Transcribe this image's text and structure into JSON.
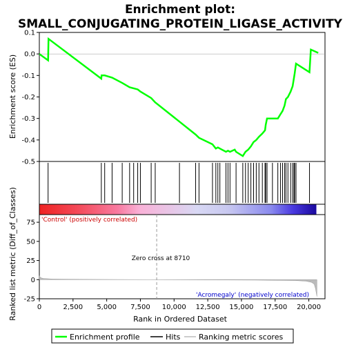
{
  "chart_data": {
    "type": "line",
    "title": "Enrichment plot:",
    "subtitle": "SMALL_CONJUGATING_PROTEIN_LIGASE_ACTIVITY",
    "enrichment_panel": {
      "ylabel": "Enrichment score (ES)",
      "ylim": [
        -0.5,
        0.1
      ],
      "yticks": [
        "0.1",
        "0.0",
        "-0.1",
        "-0.2",
        "-0.3",
        "-0.4",
        "-0.5"
      ],
      "ytick_values": [
        0.1,
        0.0,
        -0.1,
        -0.2,
        -0.3,
        -0.4,
        -0.5
      ],
      "line_color": "#00ff00",
      "series": [
        {
          "name": "Enrichment profile",
          "x": [
            0,
            650,
            680,
            4600,
            4620,
            4850,
            5400,
            6150,
            6700,
            7300,
            7500,
            8300,
            8600,
            10400,
            11600,
            11850,
            12850,
            13100,
            13250,
            13400,
            13850,
            14000,
            14150,
            14500,
            14600,
            15100,
            15300,
            15500,
            15700,
            15900,
            16100,
            16300,
            16550,
            16750,
            16800,
            16900,
            17300,
            17700,
            17900,
            18050,
            18200,
            18300,
            18450,
            18650,
            18800,
            18900,
            18950,
            19050,
            20050,
            20150,
            20700
          ],
          "y": [
            0.0,
            -0.03,
            0.07,
            -0.115,
            -0.1,
            -0.1,
            -0.11,
            -0.135,
            -0.155,
            -0.165,
            -0.175,
            -0.205,
            -0.225,
            -0.315,
            -0.375,
            -0.39,
            -0.42,
            -0.44,
            -0.435,
            -0.44,
            -0.455,
            -0.45,
            -0.455,
            -0.445,
            -0.455,
            -0.475,
            -0.455,
            -0.445,
            -0.43,
            -0.41,
            -0.4,
            -0.385,
            -0.37,
            -0.355,
            -0.33,
            -0.3,
            -0.3,
            -0.3,
            -0.28,
            -0.265,
            -0.24,
            -0.21,
            -0.2,
            -0.175,
            -0.15,
            -0.11,
            -0.09,
            -0.045,
            -0.085,
            0.02,
            0.005
          ]
        }
      ]
    },
    "hits_panel": {
      "hit_positions": [
        650,
        4600,
        4850,
        5400,
        6150,
        6700,
        7000,
        7300,
        7500,
        8300,
        8600,
        10400,
        11600,
        11850,
        12850,
        13100,
        13250,
        13400,
        13850,
        14000,
        14150,
        14600,
        15100,
        15300,
        15500,
        15700,
        15900,
        16100,
        16300,
        16550,
        16750,
        16800,
        16900,
        17300,
        17700,
        17900,
        18050,
        18200,
        18300,
        18450,
        18650,
        18800,
        18900,
        18950,
        19050,
        20050
      ],
      "colorbar_stops": [
        {
          "x": 0,
          "color": "#ee2222"
        },
        {
          "x": 3000,
          "color": "#f44c5c"
        },
        {
          "x": 5800,
          "color": "#f87aa0"
        },
        {
          "x": 7500,
          "color": "#f9b2d8"
        },
        {
          "x": 11700,
          "color": "#d8d8f4"
        },
        {
          "x": 14000,
          "color": "#c8c8f0"
        },
        {
          "x": 17200,
          "color": "#8a8aee"
        },
        {
          "x": 18800,
          "color": "#4a3ae0"
        },
        {
          "x": 20500,
          "color": "#1c0aa0"
        }
      ]
    },
    "metric_panel": {
      "ylabel": "Ranked list metric (Diff_of_Classes)",
      "xlabel": "Rank in Ordered Dataset",
      "ylim": [
        -25,
        85
      ],
      "yticks": [
        "75",
        "50",
        "25",
        "0",
        "-25"
      ],
      "ytick_values": [
        75,
        50,
        25,
        0,
        -25
      ],
      "xlim": [
        0,
        21200
      ],
      "xticks": [
        "0",
        "2,500",
        "5,000",
        "7,500",
        "10,000",
        "12,500",
        "15,000",
        "17,500",
        "20,000"
      ],
      "xtick_values": [
        0,
        2500,
        5000,
        7500,
        10000,
        12500,
        15000,
        17500,
        20000
      ],
      "fill_color": "#bbbbbb",
      "metric_x": [
        0,
        100,
        300,
        1000,
        3000,
        6000,
        8710,
        12000,
        16000,
        19000,
        19800,
        20200,
        20400,
        20500,
        20600
      ],
      "metric_y": [
        5,
        2.5,
        1.5,
        0.8,
        0.4,
        0.2,
        0,
        -0.3,
        -0.6,
        -1.2,
        -2.0,
        -3.5,
        -6.0,
        -12.0,
        -22.0
      ],
      "zero_cross": 8710,
      "zero_cross_label": "Zero cross at 8710",
      "positive_label": "'Control' (positively correlated)",
      "negative_label": "'Acromegaly' (negatively correlated)",
      "positive_color": "#cc0000",
      "negative_color": "#0000cc"
    },
    "legend": {
      "placement": "bottom",
      "items": [
        {
          "label": "Enrichment profile",
          "color": "#00ff00"
        },
        {
          "label": "Hits",
          "color": "#000000"
        },
        {
          "label": "Ranking metric scores",
          "color": "#bbbbbb"
        }
      ]
    }
  }
}
